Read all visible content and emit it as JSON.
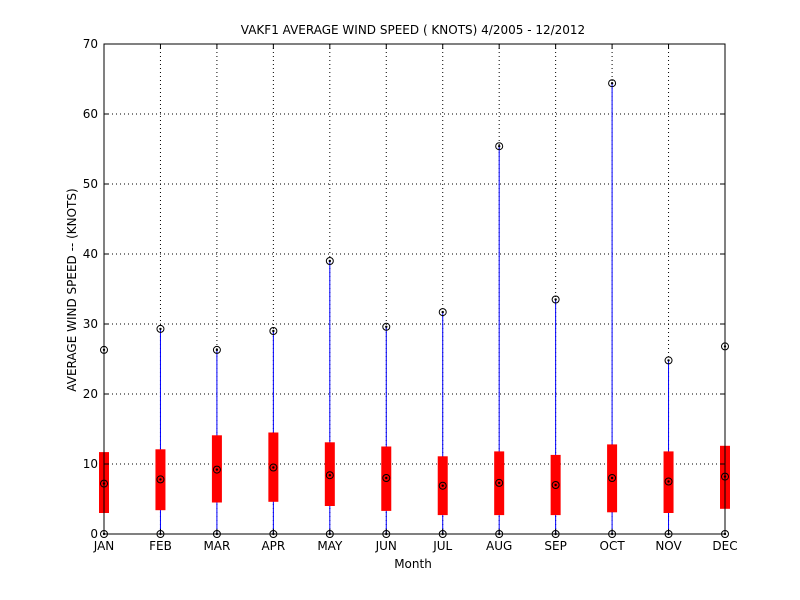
{
  "chart_data": {
    "type": "boxplot",
    "title": "VAKF1  AVERAGE WIND SPEED ( KNOTS) 4/2005 - 12/2012",
    "xlabel": "Month",
    "ylabel": "AVERAGE WIND SPEED -- (KNOTS)",
    "ylim": [
      0,
      70
    ],
    "yticks": [
      0,
      10,
      20,
      30,
      40,
      50,
      60,
      70
    ],
    "grid": true,
    "categories": [
      "JAN",
      "FEB",
      "MAR",
      "APR",
      "MAY",
      "JUN",
      "JUL",
      "AUG",
      "SEP",
      "OCT",
      "NOV",
      "DEC"
    ],
    "series": [
      {
        "min": [
          0,
          0,
          0,
          0,
          0,
          0,
          0,
          0,
          0,
          0,
          0,
          0
        ],
        "q1": [
          3.0,
          3.4,
          4.5,
          4.6,
          4.0,
          3.3,
          2.7,
          2.7,
          2.7,
          3.1,
          3.0,
          3.6
        ],
        "median": [
          7.2,
          7.8,
          9.2,
          9.5,
          8.4,
          8.0,
          6.9,
          7.3,
          7.0,
          8.0,
          7.5,
          8.2
        ],
        "q3": [
          11.7,
          12.1,
          14.1,
          14.5,
          13.1,
          12.5,
          11.1,
          11.8,
          11.3,
          12.8,
          11.8,
          12.6
        ],
        "max": [
          26.3,
          29.3,
          26.3,
          29.0,
          39.0,
          29.6,
          31.7,
          55.4,
          33.5,
          64.4,
          24.8,
          26.8
        ]
      }
    ],
    "colors": {
      "box": "#ff0000",
      "whisker": "#0000ff",
      "marker": "#000000",
      "grid": "#000000"
    }
  }
}
